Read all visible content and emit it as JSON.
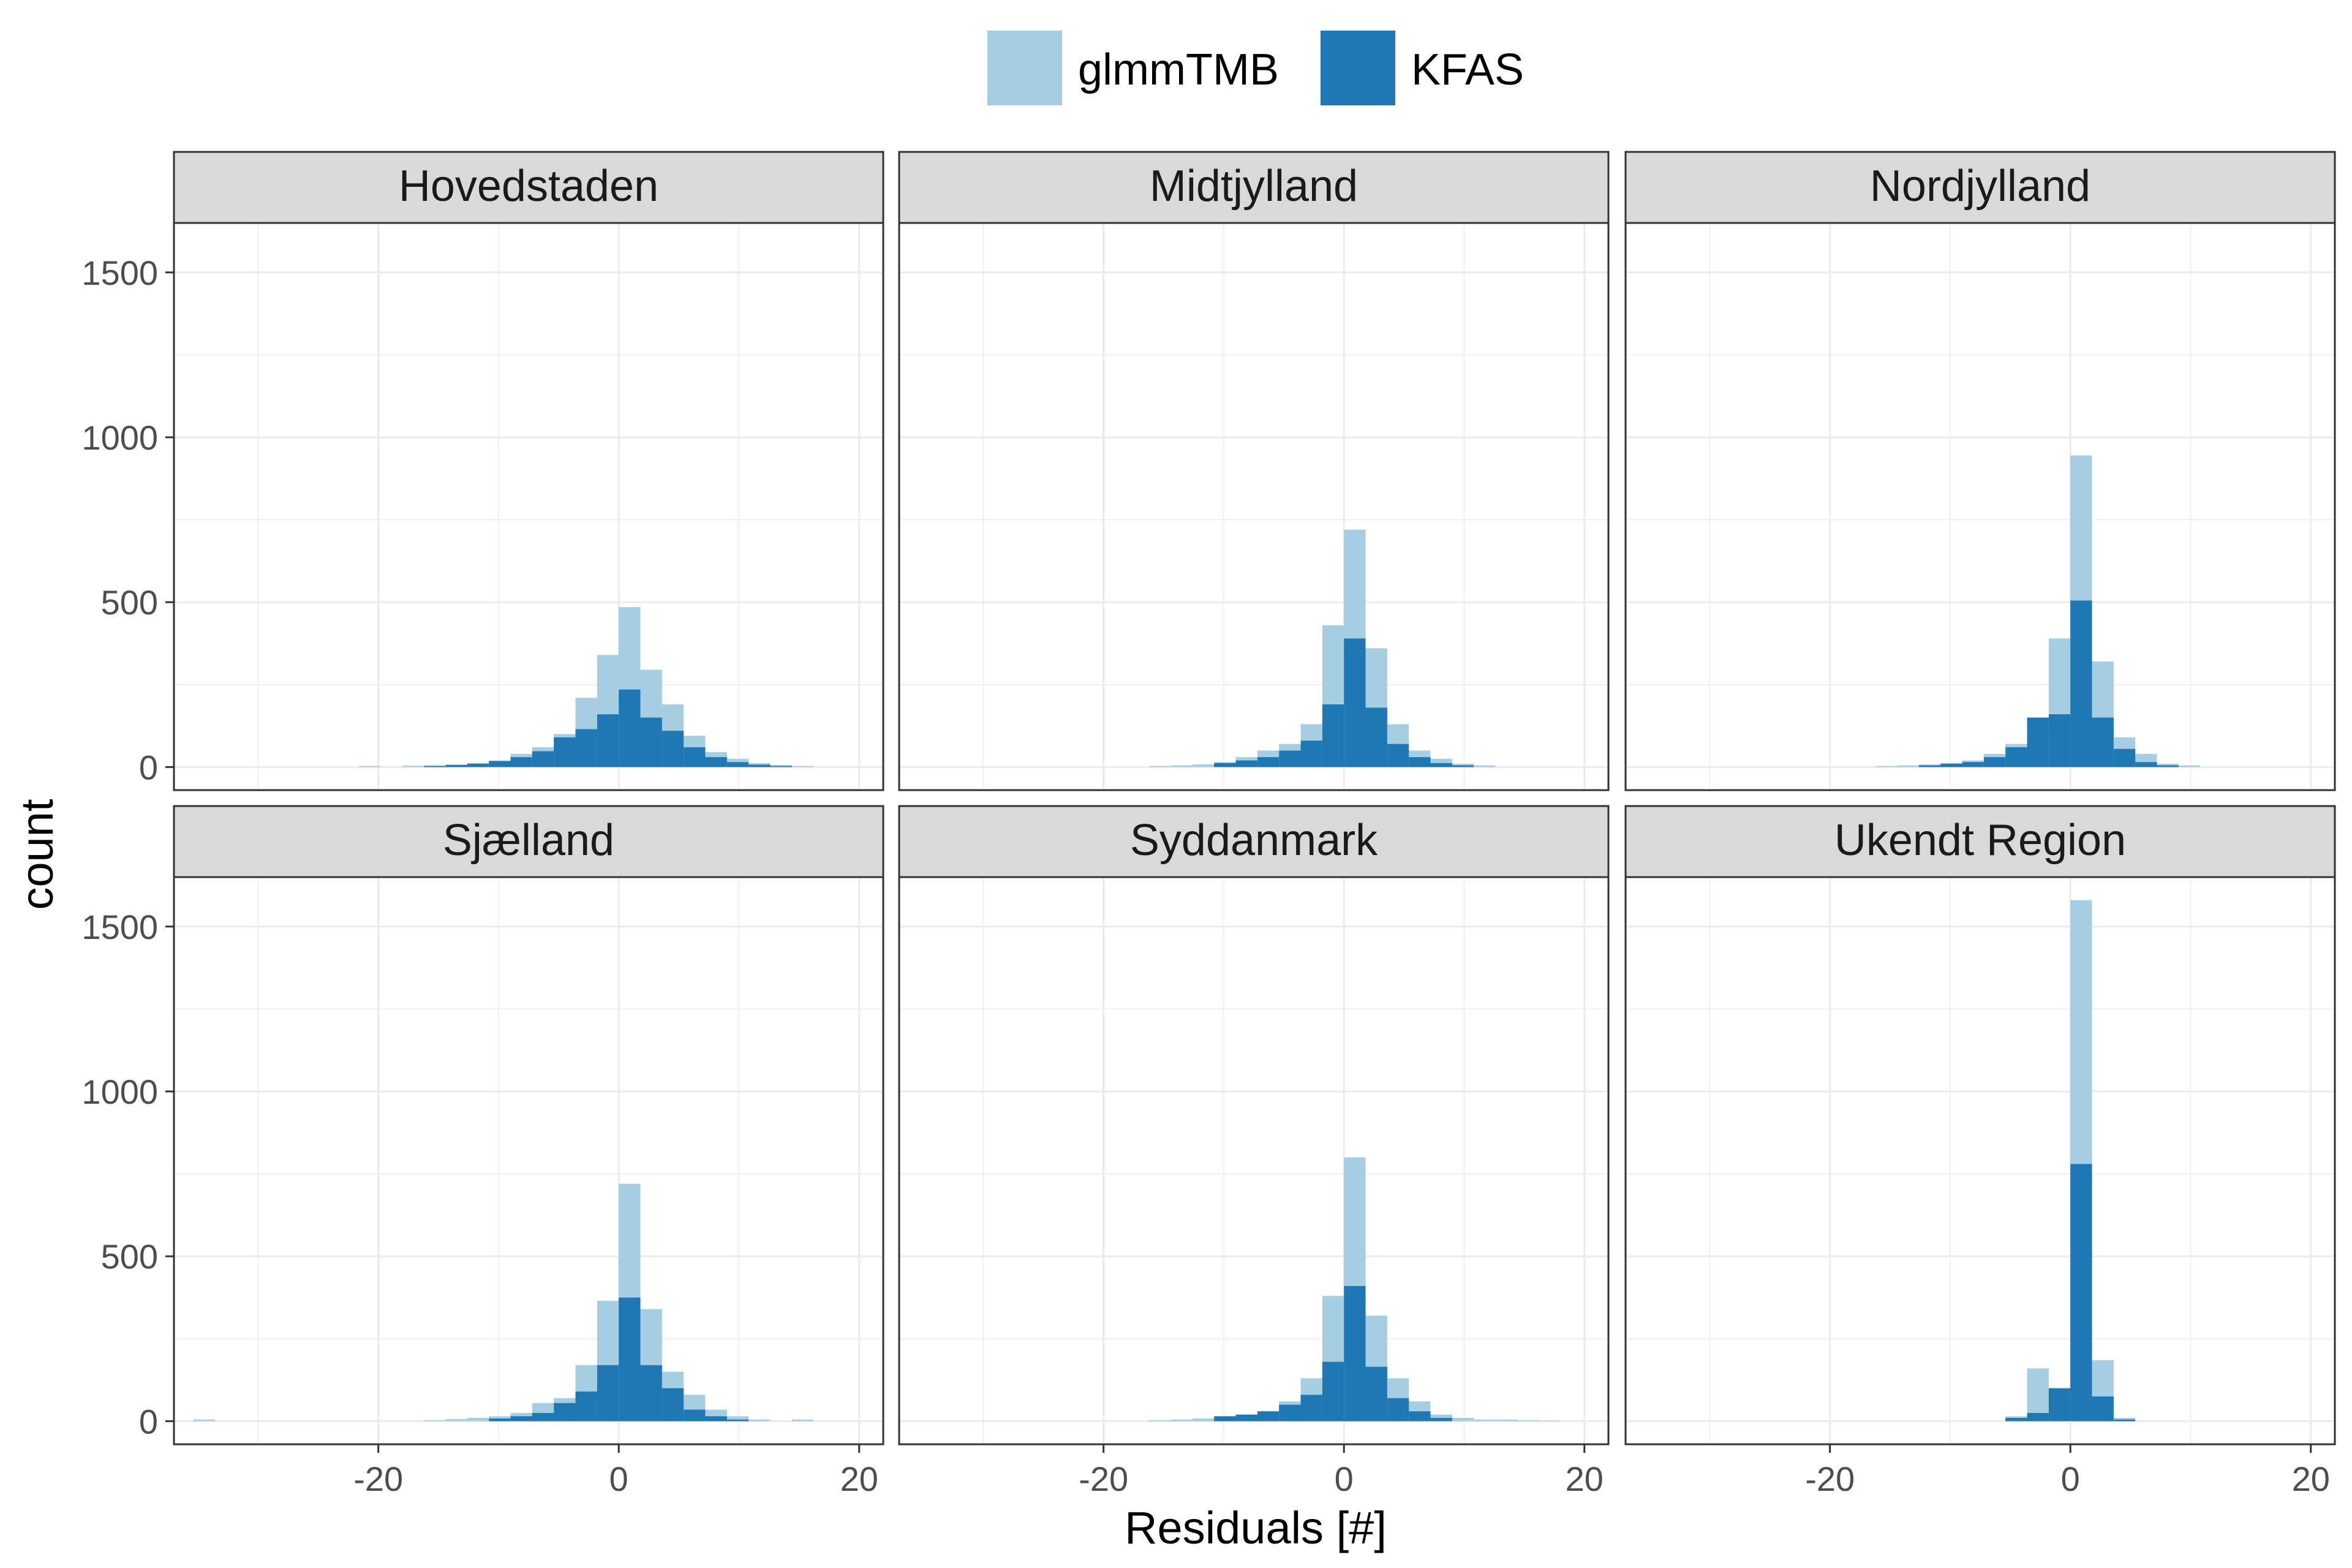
{
  "chart_data": {
    "type": "bar",
    "subtype": "faceted-overlaid-histogram",
    "xlabel": "Residuals [#]",
    "ylabel": "count",
    "xlim": [
      -37,
      22
    ],
    "ylim": [
      -70,
      1650
    ],
    "xticks": [
      -20,
      0,
      20
    ],
    "yticks": [
      0,
      500,
      1000,
      1500
    ],
    "grid": true,
    "legend_position": "top",
    "bin_width": 1.8,
    "colors": {
      "glmmTMB": "#a6cee3",
      "KFAS": "#1f78b4",
      "strip_bg": "#d9d9d9",
      "grid": "#ebebeb"
    },
    "series": [
      {
        "name": "glmmTMB",
        "color": "#a6cee3"
      },
      {
        "name": "KFAS",
        "color": "#1f78b4"
      }
    ],
    "panels": [
      {
        "title": "Hovedstaden",
        "glmmTMB": [
          [
            -20.7,
            3
          ],
          [
            -17.1,
            4
          ],
          [
            -15.3,
            5
          ],
          [
            -13.5,
            8
          ],
          [
            -11.7,
            12
          ],
          [
            -9.9,
            20
          ],
          [
            -8.1,
            40
          ],
          [
            -6.3,
            60
          ],
          [
            -4.5,
            100
          ],
          [
            -2.7,
            210
          ],
          [
            -0.9,
            340
          ],
          [
            0.9,
            485
          ],
          [
            2.7,
            295
          ],
          [
            4.5,
            190
          ],
          [
            6.3,
            95
          ],
          [
            8.1,
            45
          ],
          [
            9.9,
            25
          ],
          [
            11.7,
            12
          ],
          [
            13.5,
            6
          ],
          [
            15.3,
            3
          ]
        ],
        "KFAS": [
          [
            -15.3,
            3
          ],
          [
            -13.5,
            6
          ],
          [
            -11.7,
            10
          ],
          [
            -9.9,
            18
          ],
          [
            -8.1,
            30
          ],
          [
            -6.3,
            48
          ],
          [
            -4.5,
            90
          ],
          [
            -2.7,
            115
          ],
          [
            -0.9,
            160
          ],
          [
            0.9,
            235
          ],
          [
            2.7,
            150
          ],
          [
            4.5,
            110
          ],
          [
            6.3,
            60
          ],
          [
            8.1,
            30
          ],
          [
            9.9,
            15
          ],
          [
            11.7,
            7
          ],
          [
            13.5,
            3
          ]
        ]
      },
      {
        "title": "Midtjylland",
        "glmmTMB": [
          [
            -15.3,
            3
          ],
          [
            -13.5,
            5
          ],
          [
            -11.7,
            8
          ],
          [
            -9.9,
            15
          ],
          [
            -8.1,
            30
          ],
          [
            -6.3,
            50
          ],
          [
            -4.5,
            70
          ],
          [
            -2.7,
            130
          ],
          [
            -0.9,
            430
          ],
          [
            0.9,
            720
          ],
          [
            2.7,
            360
          ],
          [
            4.5,
            130
          ],
          [
            6.3,
            50
          ],
          [
            8.1,
            25
          ],
          [
            9.9,
            10
          ],
          [
            11.7,
            5
          ]
        ],
        "KFAS": [
          [
            -9.9,
            12
          ],
          [
            -8.1,
            20
          ],
          [
            -6.3,
            30
          ],
          [
            -4.5,
            50
          ],
          [
            -2.7,
            80
          ],
          [
            -0.9,
            190
          ],
          [
            0.9,
            390
          ],
          [
            2.7,
            180
          ],
          [
            4.5,
            70
          ],
          [
            6.3,
            30
          ],
          [
            8.1,
            12
          ],
          [
            9.9,
            5
          ]
        ]
      },
      {
        "title": "Nordjylland",
        "glmmTMB": [
          [
            -15.3,
            3
          ],
          [
            -13.5,
            5
          ],
          [
            -11.7,
            8
          ],
          [
            -9.9,
            12
          ],
          [
            -8.1,
            20
          ],
          [
            -6.3,
            40
          ],
          [
            -4.5,
            70
          ],
          [
            -2.7,
            100
          ],
          [
            -0.9,
            390
          ],
          [
            0.9,
            945
          ],
          [
            2.7,
            320
          ],
          [
            4.5,
            90
          ],
          [
            6.3,
            40
          ],
          [
            8.1,
            10
          ],
          [
            9.9,
            5
          ]
        ],
        "KFAS": [
          [
            -11.7,
            5
          ],
          [
            -9.9,
            10
          ],
          [
            -8.1,
            15
          ],
          [
            -6.3,
            30
          ],
          [
            -4.5,
            60
          ],
          [
            -2.7,
            150
          ],
          [
            -0.9,
            160
          ],
          [
            0.9,
            505
          ],
          [
            2.7,
            150
          ],
          [
            4.5,
            55
          ],
          [
            6.3,
            15
          ],
          [
            8.1,
            5
          ]
        ]
      },
      {
        "title": "Sjælland",
        "glmmTMB": [
          [
            -34.5,
            5
          ],
          [
            -15.3,
            3
          ],
          [
            -13.5,
            6
          ],
          [
            -11.7,
            10
          ],
          [
            -9.9,
            15
          ],
          [
            -8.1,
            25
          ],
          [
            -6.3,
            55
          ],
          [
            -4.5,
            70
          ],
          [
            -2.7,
            170
          ],
          [
            -0.9,
            365
          ],
          [
            0.9,
            720
          ],
          [
            2.7,
            340
          ],
          [
            4.5,
            150
          ],
          [
            6.3,
            80
          ],
          [
            8.1,
            35
          ],
          [
            9.9,
            15
          ],
          [
            11.7,
            5
          ],
          [
            15.3,
            5
          ]
        ],
        "KFAS": [
          [
            -9.9,
            8
          ],
          [
            -8.1,
            15
          ],
          [
            -6.3,
            25
          ],
          [
            -4.5,
            55
          ],
          [
            -2.7,
            90
          ],
          [
            -0.9,
            170
          ],
          [
            0.9,
            375
          ],
          [
            2.7,
            170
          ],
          [
            4.5,
            100
          ],
          [
            6.3,
            35
          ],
          [
            8.1,
            15
          ],
          [
            9.9,
            5
          ]
        ]
      },
      {
        "title": "Syddanmark",
        "glmmTMB": [
          [
            -15.3,
            3
          ],
          [
            -13.5,
            5
          ],
          [
            -11.7,
            8
          ],
          [
            -9.9,
            12
          ],
          [
            -8.1,
            20
          ],
          [
            -6.3,
            30
          ],
          [
            -4.5,
            60
          ],
          [
            -2.7,
            130
          ],
          [
            -0.9,
            380
          ],
          [
            0.9,
            800
          ],
          [
            2.7,
            320
          ],
          [
            4.5,
            130
          ],
          [
            6.3,
            60
          ],
          [
            8.1,
            20
          ],
          [
            9.9,
            10
          ],
          [
            11.7,
            5
          ],
          [
            13.5,
            5
          ],
          [
            15.3,
            3
          ],
          [
            17.1,
            2
          ]
        ],
        "KFAS": [
          [
            -9.9,
            15
          ],
          [
            -8.1,
            20
          ],
          [
            -6.3,
            30
          ],
          [
            -4.5,
            50
          ],
          [
            -2.7,
            80
          ],
          [
            -0.9,
            180
          ],
          [
            0.9,
            410
          ],
          [
            2.7,
            165
          ],
          [
            4.5,
            70
          ],
          [
            6.3,
            30
          ],
          [
            8.1,
            10
          ]
        ]
      },
      {
        "title": "Ukendt Region",
        "glmmTMB": [
          [
            -4.5,
            15
          ],
          [
            -2.7,
            160
          ],
          [
            -0.9,
            100
          ],
          [
            0.9,
            1580
          ],
          [
            2.7,
            185
          ],
          [
            4.5,
            10
          ]
        ],
        "KFAS": [
          [
            -4.5,
            10
          ],
          [
            -2.7,
            25
          ],
          [
            -0.9,
            100
          ],
          [
            0.9,
            780
          ],
          [
            2.7,
            75
          ],
          [
            4.5,
            5
          ]
        ]
      }
    ]
  }
}
